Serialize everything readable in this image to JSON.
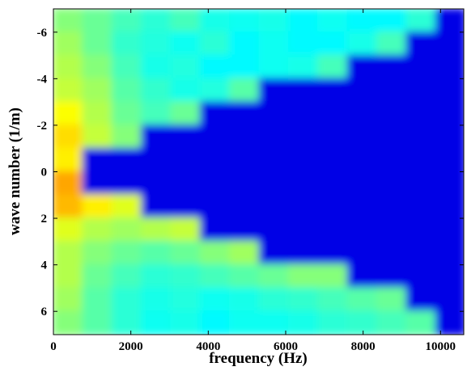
{
  "chart_data": {
    "type": "heatmap",
    "x_label": "frequency (Hz)",
    "y_label": "wave number (1/m)",
    "xlim": [
      0,
      10600
    ],
    "ylim": [
      -7,
      7
    ],
    "xticks": [
      0,
      2000,
      4000,
      6000,
      8000,
      10000
    ],
    "yticks": [
      -6,
      -4,
      -2,
      0,
      2,
      4,
      6
    ],
    "y_reversed": true,
    "colormap": "jet",
    "x": [
      380,
      1140,
      1900,
      2660,
      3420,
      4180,
      4940,
      5700,
      6460,
      7220,
      7980,
      8740,
      9500,
      10260
    ],
    "y": [
      -6.5,
      -5.5,
      -4.5,
      -3.5,
      -2.5,
      -1.5,
      -0.5,
      0.5,
      1.5,
      2.5,
      3.5,
      4.5,
      5.5,
      6.5
    ],
    "z": [
      [
        0.45,
        0.42,
        0.38,
        0.35,
        0.38,
        0.33,
        0.32,
        0.33,
        0.3,
        0.32,
        0.3,
        0.3,
        0.35,
        0
      ],
      [
        0.48,
        0.42,
        0.36,
        0.34,
        0.32,
        0.35,
        0.3,
        0.32,
        0.3,
        0.3,
        0.33,
        0.38,
        0,
        0
      ],
      [
        0.5,
        0.45,
        0.38,
        0.33,
        0.34,
        0.3,
        0.3,
        0.32,
        0.33,
        0.38,
        0,
        0,
        0,
        0
      ],
      [
        0.52,
        0.48,
        0.4,
        0.36,
        0.33,
        0.34,
        0.4,
        0,
        0,
        0,
        0,
        0,
        0,
        0
      ],
      [
        0.58,
        0.5,
        0.42,
        0.38,
        0.42,
        0,
        0,
        0,
        0,
        0,
        0,
        0,
        0,
        0
      ],
      [
        0.62,
        0.52,
        0.45,
        0,
        0,
        0,
        0,
        0,
        0,
        0,
        0,
        0,
        0,
        0
      ],
      [
        0.6,
        0,
        0,
        0,
        0,
        0,
        0,
        0,
        0,
        0,
        0,
        0,
        0,
        0
      ],
      [
        0.68,
        0,
        0,
        0,
        0,
        0,
        0,
        0,
        0,
        0,
        0,
        0,
        0,
        0
      ],
      [
        0.66,
        0.6,
        0.55,
        0,
        0,
        0,
        0,
        0,
        0,
        0,
        0,
        0,
        0,
        0
      ],
      [
        0.55,
        0.5,
        0.48,
        0.5,
        0.52,
        0,
        0,
        0,
        0,
        0,
        0,
        0,
        0,
        0
      ],
      [
        0.5,
        0.45,
        0.42,
        0.4,
        0.42,
        0.45,
        0.48,
        0,
        0,
        0,
        0,
        0,
        0,
        0
      ],
      [
        0.5,
        0.42,
        0.38,
        0.35,
        0.36,
        0.38,
        0.4,
        0.42,
        0.45,
        0.45,
        0,
        0,
        0,
        0
      ],
      [
        0.48,
        0.4,
        0.35,
        0.33,
        0.34,
        0.32,
        0.33,
        0.35,
        0.36,
        0.38,
        0.4,
        0.42,
        0,
        0
      ],
      [
        0.45,
        0.4,
        0.35,
        0.32,
        0.33,
        0.3,
        0.32,
        0.32,
        0.33,
        0.35,
        0.36,
        0.38,
        0.4,
        0
      ]
    ]
  }
}
